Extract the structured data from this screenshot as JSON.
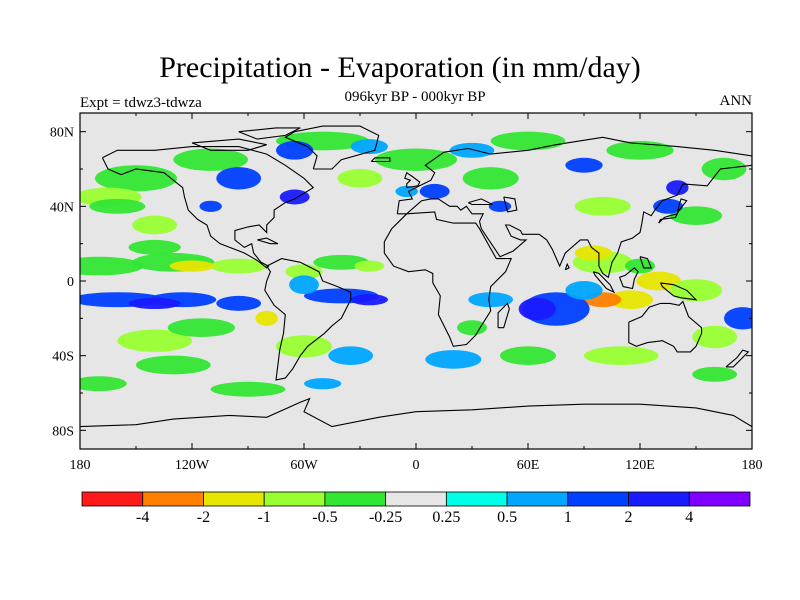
{
  "header": {
    "title": "Precipitation - Evaporation (in mm/day)",
    "subtitle": "096kyr BP - 000kyr BP",
    "left_label": "Expt = tdwz3-tdwza",
    "right_label": "ANN"
  },
  "axes": {
    "lon_ticks": [
      "180",
      "120W",
      "60W",
      "0",
      "60E",
      "120E",
      "180"
    ],
    "lat_ticks": [
      "80N",
      "40N",
      "0",
      "40S",
      "80S"
    ]
  },
  "colorbar": {
    "colors": [
      "#ff1a1a",
      "#ff8000",
      "#e6e600",
      "#99ff33",
      "#33e633",
      "#e6e6e6",
      "#00ffe6",
      "#00a6ff",
      "#0040ff",
      "#1a1aff",
      "#8000ff"
    ],
    "labels": [
      "-4",
      "-2",
      "-1",
      "-0.5",
      "-0.25",
      "0.25",
      "0.5",
      "1",
      "2",
      "4"
    ]
  },
  "map_style": {
    "ocean_background": "#e6e6e6",
    "coastline_color": "#000000"
  }
}
